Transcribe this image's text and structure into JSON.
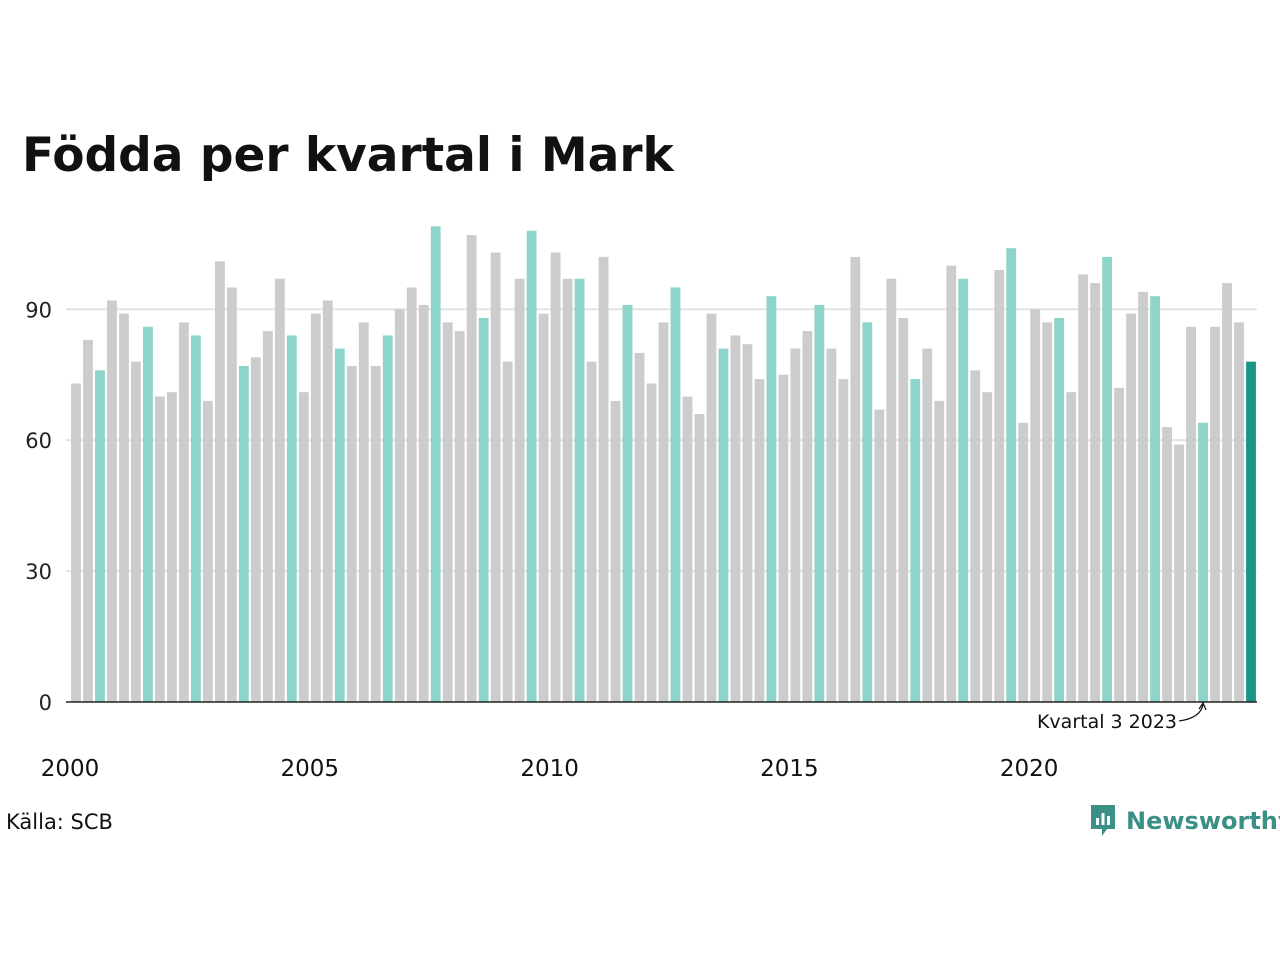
{
  "title": "Födda per kvartal i Mark",
  "source": "Källa: SCB",
  "brand": "Newsworthy",
  "colors": {
    "grey": "#cccccc",
    "q3": "#8dd4cb",
    "highlight": "#1a9485",
    "grid": "#e3e3e3",
    "axis": "#222222"
  },
  "chart_data": {
    "type": "bar",
    "x_start": "2000 kvartal 1",
    "ylim": [
      0,
      110
    ],
    "yticks": [
      0,
      30,
      60,
      90
    ],
    "xticks": [
      "2000",
      "2005",
      "2010",
      "2015",
      "2020"
    ],
    "annotation": "Kvartal 3 2023",
    "highlight_quarter": 3,
    "values": [
      73,
      83,
      76,
      92,
      89,
      78,
      86,
      70,
      71,
      87,
      84,
      69,
      101,
      95,
      77,
      79,
      85,
      97,
      84,
      71,
      89,
      92,
      81,
      77,
      87,
      77,
      84,
      90,
      95,
      91,
      109,
      87,
      85,
      107,
      88,
      103,
      78,
      97,
      108,
      89,
      103,
      97,
      97,
      78,
      102,
      69,
      91,
      80,
      73,
      87,
      95,
      70,
      66,
      89,
      81,
      84,
      82,
      74,
      93,
      75,
      81,
      85,
      91,
      81,
      74,
      102,
      87,
      67,
      97,
      88,
      74,
      81,
      69,
      100,
      97,
      76,
      71,
      99,
      104,
      64,
      90,
      87,
      88,
      71,
      98,
      96,
      102,
      72,
      89,
      94,
      93,
      63,
      59,
      86,
      64,
      86,
      96,
      87,
      78
    ]
  }
}
